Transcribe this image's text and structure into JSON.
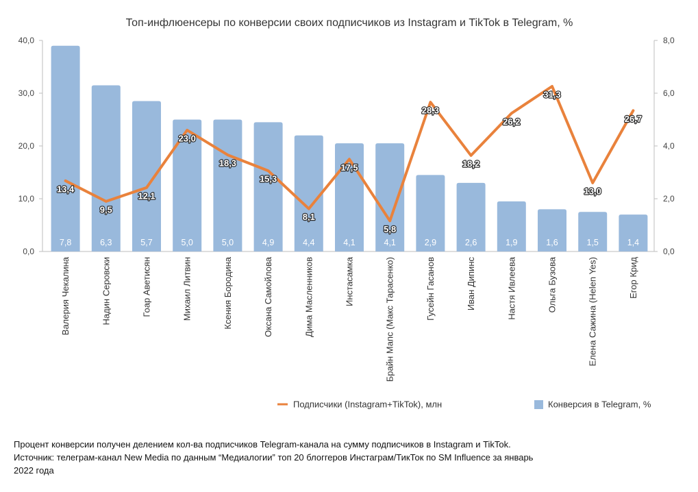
{
  "chart_data": {
    "type": "bar",
    "title": "Топ-инфлюенсеры по конверсии своих подписчиков из Instagram и TikTok в Telegram, %",
    "categories": [
      "Валерия Чекалина",
      "Надин Серовски",
      "Гоар Аветисян",
      "Михаил Литвин",
      "Ксения Бородина",
      "Оксана Самойлова",
      "Дима Масленников",
      "Инстасамка",
      "Брайн Мапс (Макс Тарасенко)",
      "Гусейн Гасанов",
      "Иван Дипинс",
      "Настя Ивлеева",
      "Ольга Бузова",
      "Елена Сажина (Helen Yes)",
      "Егор Крид"
    ],
    "y_left": {
      "ylim": [
        0,
        40
      ],
      "ticks": [
        "0,0",
        "10,0",
        "20,0",
        "30,0",
        "40,0"
      ]
    },
    "y_right": {
      "ylim": [
        0,
        8
      ],
      "ticks": [
        "0,0",
        "2,0",
        "4,0",
        "6,0",
        "8,0"
      ]
    },
    "grid": false,
    "legend_position": "bottom",
    "series": [
      {
        "name": "Конверсия в Telegram, %",
        "kind": "bar",
        "axis": "right",
        "color": "#99B9DC",
        "values": [
          7.8,
          6.3,
          5.7,
          5.0,
          5.0,
          4.9,
          4.4,
          4.1,
          4.1,
          2.9,
          2.6,
          1.9,
          1.6,
          1.5,
          1.4
        ],
        "labels": [
          "7,8",
          "6,3",
          "5,7",
          "5,0",
          "5,0",
          "4,9",
          "4,4",
          "4,1",
          "4,1",
          "2,9",
          "2,6",
          "1,9",
          "1,6",
          "1,5",
          "1,4"
        ]
      },
      {
        "name": "Подписчики (Instagram+TikTok), млн",
        "kind": "line",
        "axis": "left",
        "color": "#E9823C",
        "values": [
          13.4,
          9.5,
          12.1,
          23.0,
          18.3,
          15.3,
          8.1,
          17.5,
          5.8,
          28.3,
          18.2,
          26.2,
          31.3,
          13.0,
          26.7
        ],
        "labels": [
          "13,4",
          "9,5",
          "12,1",
          "23,0",
          "18,3",
          "15,3",
          "8,1",
          "17,5",
          "5,8",
          "28,3",
          "18,2",
          "26,2",
          "31,3",
          "13,0",
          "26,7"
        ]
      }
    ]
  },
  "notes": [
    "Процент конверсии получен делением кол-ва подписчиков Telegram-канала на сумму подписчиков в Instagram и TikTok.",
    "Источник: телеграм-канал New Media по данным “Медиалогии” топ 20 блоггеров Инстаграм/ТикТок по SM Influence за январь",
    "2022 года"
  ]
}
